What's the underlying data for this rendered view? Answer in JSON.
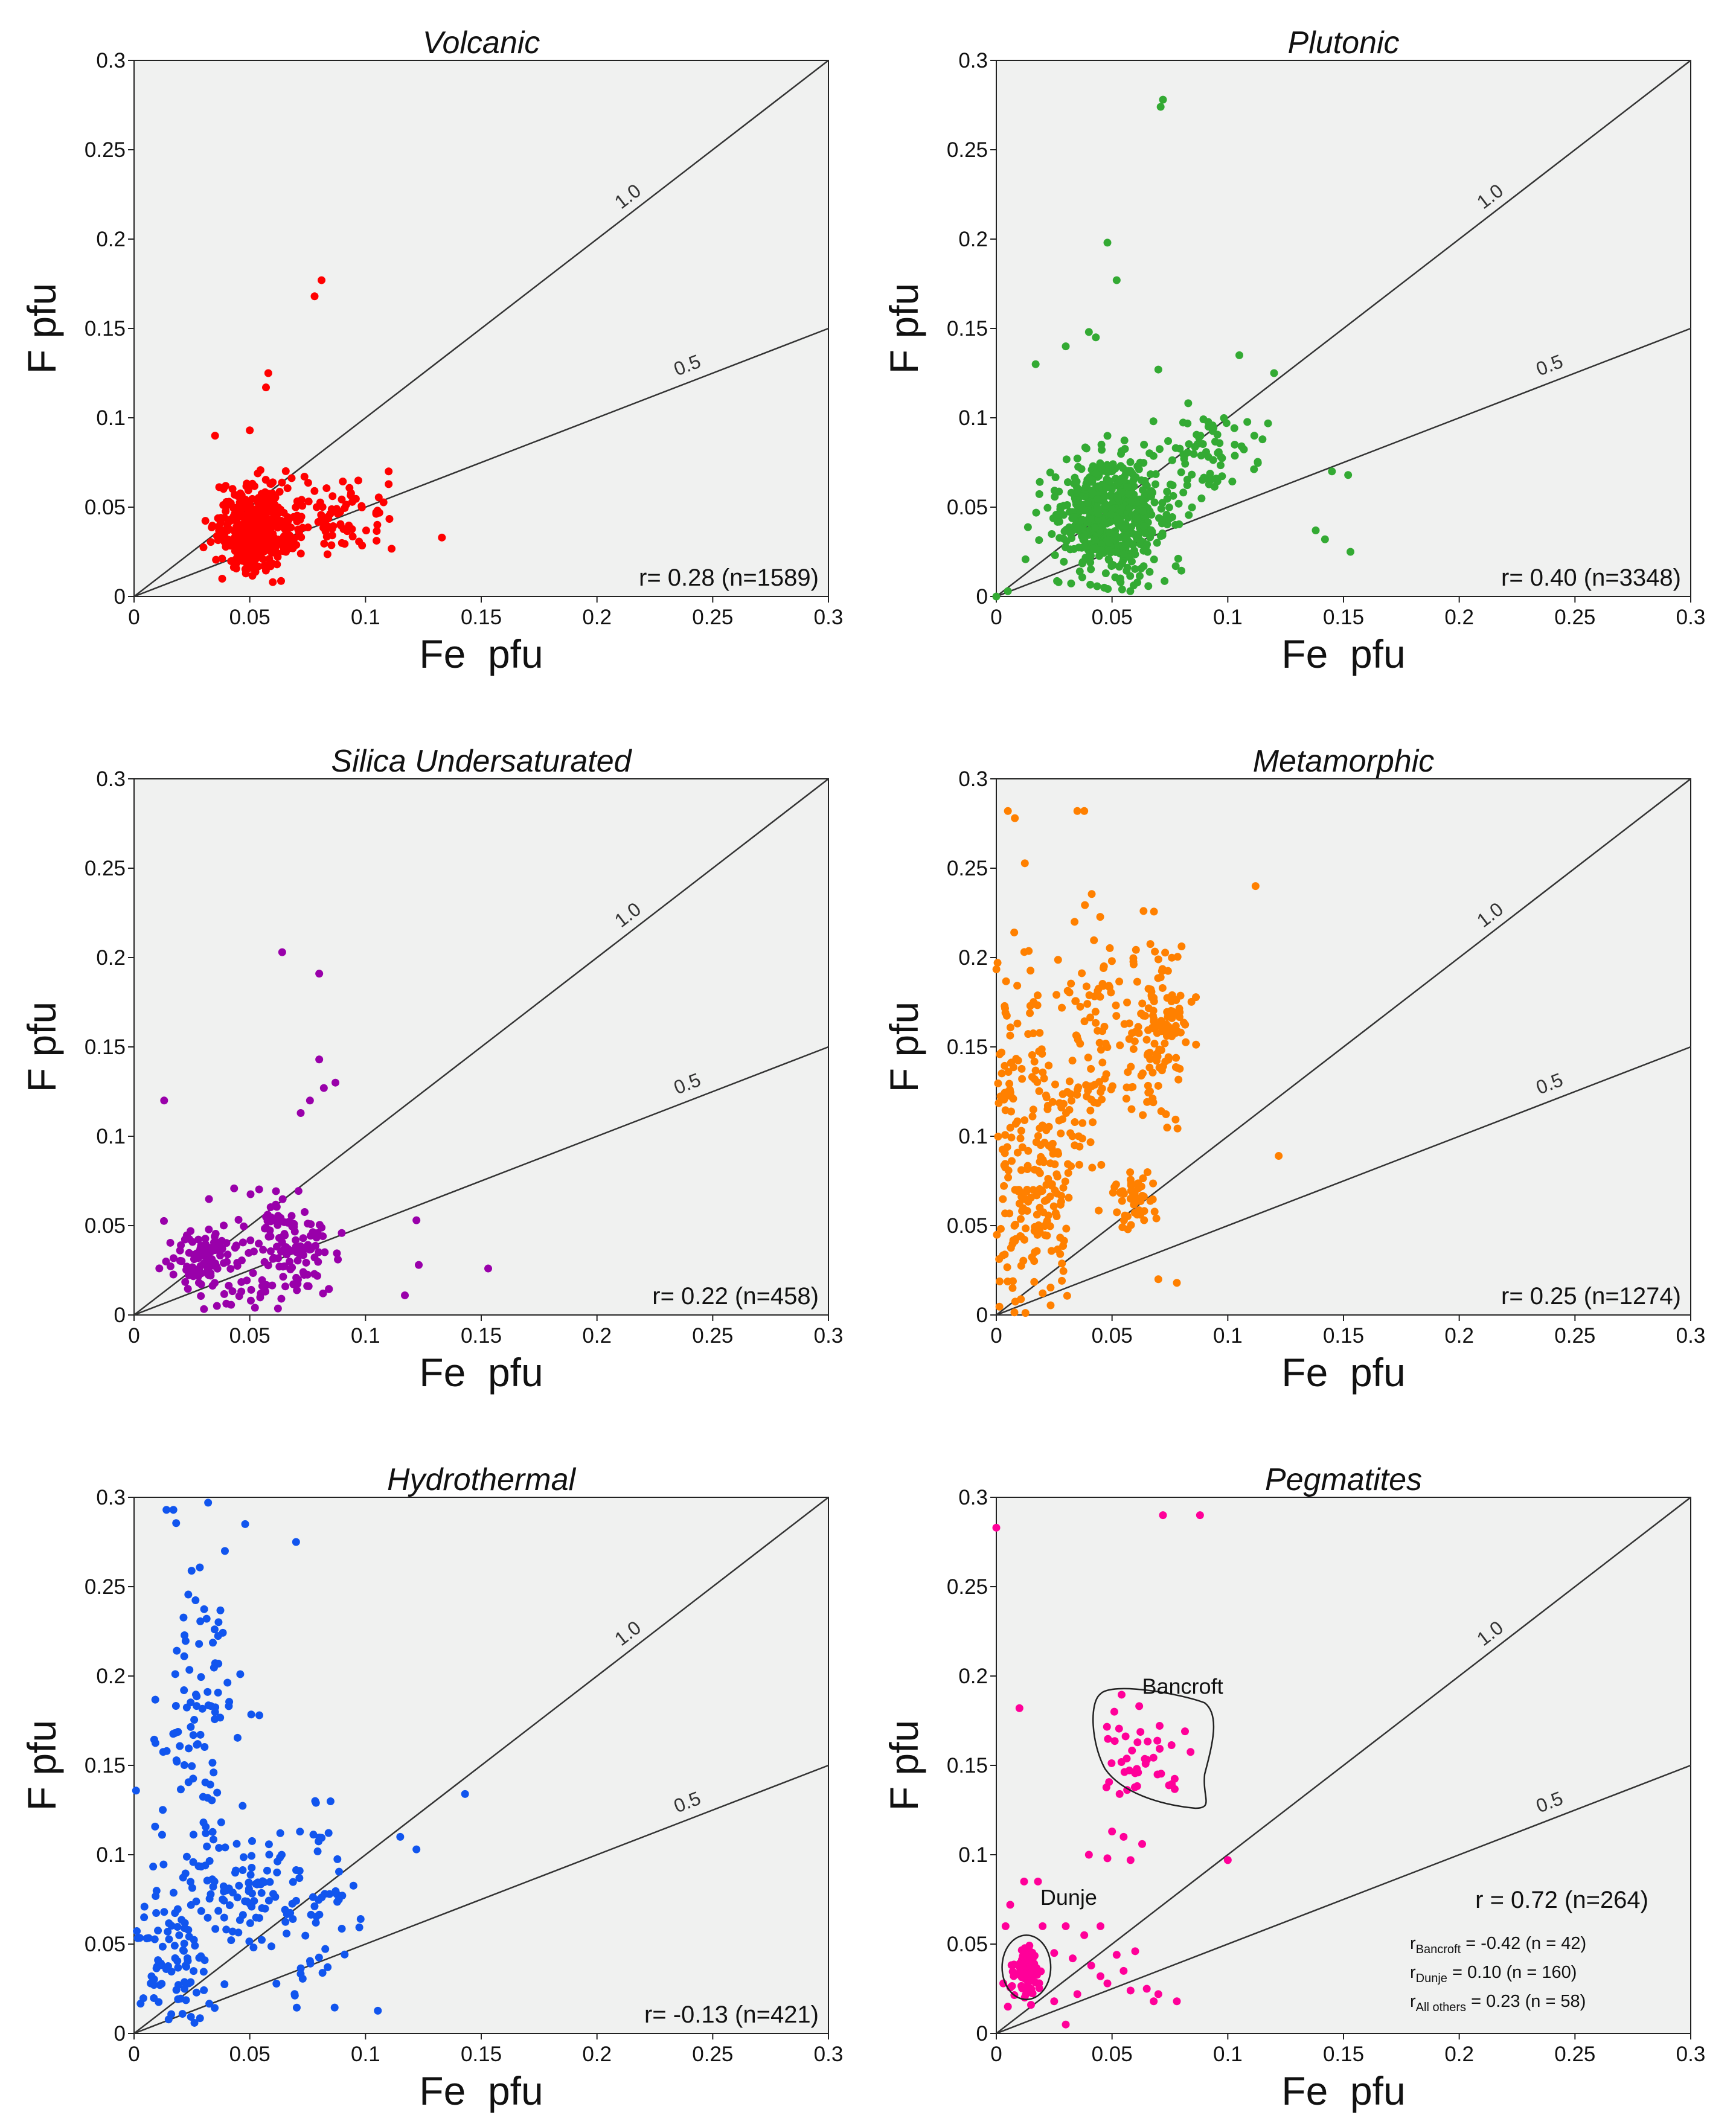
{
  "chart_data": [
    {
      "type": "scatter",
      "title": "Volcanic",
      "xlabel": "Fe pfu",
      "ylabel": "F pfu",
      "xlim": [
        0,
        0.3
      ],
      "ylim": [
        0,
        0.3
      ],
      "ticks": [
        "0",
        "0.05",
        "0.1",
        "0.15",
        "0.2",
        "0.25",
        "0.3"
      ],
      "ref_lines": [
        {
          "slope": 1.0,
          "label": "1.0"
        },
        {
          "slope": 0.5,
          "label": "0.5"
        }
      ],
      "stat": "r= 0.28 (n=1589)",
      "color": "#ff0000",
      "clusters": [
        {
          "cx": 0.052,
          "cy": 0.038,
          "sx": 0.008,
          "sy": 0.012,
          "n": 420,
          "xmin": 0.025,
          "xmax": 0.08,
          "ymin": 0.0,
          "ymax": 0.09
        },
        {
          "cx": 0.085,
          "cy": 0.045,
          "sx": 0.012,
          "sy": 0.01,
          "n": 90,
          "xmin": 0.06,
          "xmax": 0.112,
          "ymin": 0.02,
          "ymax": 0.072
        }
      ],
      "outliers": [
        [
          0.081,
          0.177
        ],
        [
          0.078,
          0.168
        ],
        [
          0.058,
          0.125
        ],
        [
          0.057,
          0.117
        ],
        [
          0.133,
          0.033
        ],
        [
          0.11,
          0.07
        ],
        [
          0.05,
          0.093
        ],
        [
          0.035,
          0.09
        ]
      ],
      "annotations": [],
      "sub_stats": []
    },
    {
      "type": "scatter",
      "title": "Plutonic",
      "xlabel": "Fe pfu",
      "ylabel": "F pfu",
      "xlim": [
        0,
        0.3
      ],
      "ylim": [
        0,
        0.3
      ],
      "ticks": [
        "0",
        "0.05",
        "0.1",
        "0.15",
        "0.2",
        "0.25",
        "0.3"
      ],
      "ref_lines": [
        {
          "slope": 1.0,
          "label": "1.0"
        },
        {
          "slope": 0.5,
          "label": "0.5"
        }
      ],
      "stat": "r= 0.40 (n=3348)",
      "color": "#33aa33",
      "clusters": [
        {
          "cx": 0.05,
          "cy": 0.045,
          "sx": 0.012,
          "sy": 0.017,
          "n": 600,
          "xmin": 0.01,
          "xmax": 0.095,
          "ymin": 0.0,
          "ymax": 0.1
        },
        {
          "cx": 0.09,
          "cy": 0.08,
          "sx": 0.01,
          "sy": 0.012,
          "n": 70,
          "xmin": 0.065,
          "xmax": 0.12,
          "ymin": 0.055,
          "ymax": 0.13
        }
      ],
      "outliers": [
        [
          0.072,
          0.278
        ],
        [
          0.071,
          0.274
        ],
        [
          0.048,
          0.198
        ],
        [
          0.052,
          0.177
        ],
        [
          0.04,
          0.148
        ],
        [
          0.043,
          0.145
        ],
        [
          0.017,
          0.13
        ],
        [
          0.03,
          0.14
        ],
        [
          0.07,
          0.127
        ],
        [
          0.105,
          0.135
        ],
        [
          0.145,
          0.07
        ],
        [
          0.152,
          0.068
        ],
        [
          0.153,
          0.025
        ],
        [
          0.138,
          0.037
        ],
        [
          0.142,
          0.032
        ],
        [
          0.12,
          0.125
        ],
        [
          0.0,
          0.0
        ],
        [
          0.005,
          0.003
        ]
      ],
      "annotations": [],
      "sub_stats": []
    },
    {
      "type": "scatter",
      "title": "Silica Undersaturated",
      "xlabel": "Fe pfu",
      "ylabel": "F pfu",
      "xlim": [
        0,
        0.3
      ],
      "ylim": [
        0,
        0.3
      ],
      "ticks": [
        "0",
        "0.05",
        "0.1",
        "0.15",
        "0.2",
        "0.25",
        "0.3"
      ],
      "ref_lines": [
        {
          "slope": 1.0,
          "label": "1.0"
        },
        {
          "slope": 0.5,
          "label": "0.5"
        }
      ],
      "stat": "r= 0.22 (n=458)",
      "color": "#9900aa",
      "clusters": [
        {
          "cx": 0.028,
          "cy": 0.032,
          "sx": 0.006,
          "sy": 0.008,
          "n": 90,
          "xmin": 0.01,
          "xmax": 0.045,
          "ymin": 0.005,
          "ymax": 0.06
        },
        {
          "cx": 0.07,
          "cy": 0.04,
          "sx": 0.01,
          "sy": 0.014,
          "n": 100,
          "xmin": 0.045,
          "xmax": 0.09,
          "ymin": 0.005,
          "ymax": 0.08
        },
        {
          "cx": 0.05,
          "cy": 0.03,
          "sx": 0.015,
          "sy": 0.02,
          "n": 60,
          "xmin": 0.01,
          "xmax": 0.09,
          "ymin": 0.0,
          "ymax": 0.08
        }
      ],
      "outliers": [
        [
          0.064,
          0.203
        ],
        [
          0.08,
          0.191
        ],
        [
          0.08,
          0.143
        ],
        [
          0.087,
          0.13
        ],
        [
          0.082,
          0.127
        ],
        [
          0.076,
          0.12
        ],
        [
          0.072,
          0.113
        ],
        [
          0.013,
          0.12
        ],
        [
          0.122,
          0.053
        ],
        [
          0.123,
          0.028
        ],
        [
          0.153,
          0.026
        ],
        [
          0.117,
          0.011
        ]
      ],
      "annotations": [],
      "sub_stats": []
    },
    {
      "type": "scatter",
      "title": "Metamorphic",
      "xlabel": "Fe pfu",
      "ylabel": "F pfu",
      "xlim": [
        0,
        0.3
      ],
      "ylim": [
        0,
        0.3
      ],
      "ticks": [
        "0",
        "0.05",
        "0.1",
        "0.15",
        "0.2",
        "0.25",
        "0.3"
      ],
      "ref_lines": [
        {
          "slope": 1.0,
          "label": "1.0"
        },
        {
          "slope": 0.5,
          "label": "0.5"
        }
      ],
      "stat": "r= 0.25 (n=1274)",
      "color": "#ff8000",
      "clusters": [
        {
          "cx": 0.01,
          "cy": 0.1,
          "sx": 0.007,
          "sy": 0.06,
          "n": 150,
          "xmin": 0.0,
          "xmax": 0.03,
          "ymin": 0.0,
          "ymax": 0.28
        },
        {
          "cx": 0.025,
          "cy": 0.08,
          "sx": 0.006,
          "sy": 0.04,
          "n": 100,
          "xmin": 0.01,
          "xmax": 0.04,
          "ymin": 0.0,
          "ymax": 0.16
        },
        {
          "cx": 0.04,
          "cy": 0.15,
          "sx": 0.006,
          "sy": 0.04,
          "n": 80,
          "xmin": 0.025,
          "xmax": 0.055,
          "ymin": 0.05,
          "ymax": 0.24
        },
        {
          "cx": 0.06,
          "cy": 0.065,
          "sx": 0.005,
          "sy": 0.01,
          "n": 50,
          "xmin": 0.045,
          "xmax": 0.075,
          "ymin": 0.045,
          "ymax": 0.09
        },
        {
          "cx": 0.07,
          "cy": 0.16,
          "sx": 0.008,
          "sy": 0.025,
          "n": 140,
          "xmin": 0.05,
          "xmax": 0.09,
          "ymin": 0.1,
          "ymax": 0.23
        }
      ],
      "outliers": [
        [
          0.038,
          0.282
        ],
        [
          0.035,
          0.282
        ],
        [
          0.005,
          0.282
        ],
        [
          0.008,
          0.278
        ],
        [
          0.112,
          0.24
        ],
        [
          0.122,
          0.089
        ],
        [
          0.078,
          0.018
        ],
        [
          0.07,
          0.02
        ]
      ],
      "annotations": [],
      "sub_stats": []
    },
    {
      "type": "scatter",
      "title": "Hydrothermal",
      "xlabel": "Fe pfu",
      "ylabel": "F pfu",
      "xlim": [
        0,
        0.3
      ],
      "ylim": [
        0,
        0.3
      ],
      "ticks": [
        "0",
        "0.05",
        "0.1",
        "0.15",
        "0.2",
        "0.25",
        "0.3"
      ],
      "ref_lines": [
        {
          "slope": 1.0,
          "label": "1.0"
        },
        {
          "slope": 0.5,
          "label": "0.5"
        }
      ],
      "stat": "r= -0.13 (n=421)",
      "color": "#1155ee",
      "clusters": [
        {
          "cx": 0.05,
          "cy": 0.08,
          "sx": 0.01,
          "sy": 0.014,
          "n": 70,
          "xmin": 0.03,
          "xmax": 0.075,
          "ymin": 0.05,
          "ymax": 0.11
        },
        {
          "cx": 0.028,
          "cy": 0.16,
          "sx": 0.01,
          "sy": 0.05,
          "n": 110,
          "xmin": 0.0,
          "xmax": 0.06,
          "ymin": 0.05,
          "ymax": 0.295
        },
        {
          "cx": 0.015,
          "cy": 0.04,
          "sx": 0.01,
          "sy": 0.025,
          "n": 90,
          "xmin": 0.0,
          "xmax": 0.05,
          "ymin": 0.0,
          "ymax": 0.1
        },
        {
          "cx": 0.08,
          "cy": 0.07,
          "sx": 0.012,
          "sy": 0.035,
          "n": 60,
          "xmin": 0.05,
          "xmax": 0.11,
          "ymin": 0.01,
          "ymax": 0.16
        }
      ],
      "outliers": [
        [
          0.143,
          0.134
        ],
        [
          0.115,
          0.11
        ],
        [
          0.122,
          0.103
        ],
        [
          0.07,
          0.275
        ],
        [
          0.048,
          0.285
        ],
        [
          0.032,
          0.297
        ],
        [
          0.017,
          0.293
        ],
        [
          0.014,
          0.293
        ]
      ],
      "annotations": [],
      "sub_stats": []
    },
    {
      "type": "scatter",
      "title": "Pegmatites",
      "xlabel": "Fe pfu",
      "ylabel": "F pfu",
      "xlim": [
        0,
        0.3
      ],
      "ylim": [
        0,
        0.3
      ],
      "ticks": [
        "0",
        "0.05",
        "0.1",
        "0.15",
        "0.2",
        "0.25",
        "0.3"
      ],
      "ref_lines": [
        {
          "slope": 1.0,
          "label": "1.0"
        },
        {
          "slope": 0.5,
          "label": "0.5"
        }
      ],
      "stat": "r = 0.72 (n=264)",
      "color": "#ff0099",
      "clusters": [
        {
          "cx": 0.013,
          "cy": 0.035,
          "sx": 0.003,
          "sy": 0.007,
          "n": 80,
          "xmin": 0.006,
          "xmax": 0.02,
          "ymin": 0.02,
          "ymax": 0.05
        },
        {
          "cx": 0.065,
          "cy": 0.155,
          "sx": 0.012,
          "sy": 0.013,
          "n": 42,
          "xmin": 0.045,
          "xmax": 0.09,
          "ymin": 0.13,
          "ymax": 0.19
        }
      ],
      "outliers": [
        [
          0.0,
          0.283
        ],
        [
          0.072,
          0.29
        ],
        [
          0.088,
          0.29
        ],
        [
          0.01,
          0.182
        ],
        [
          0.1,
          0.097
        ],
        [
          0.05,
          0.113
        ],
        [
          0.055,
          0.11
        ],
        [
          0.063,
          0.106
        ],
        [
          0.04,
          0.1
        ],
        [
          0.048,
          0.098
        ],
        [
          0.058,
          0.097
        ],
        [
          0.03,
          0.06
        ],
        [
          0.045,
          0.06
        ],
        [
          0.038,
          0.055
        ],
        [
          0.033,
          0.042
        ],
        [
          0.041,
          0.038
        ],
        [
          0.052,
          0.044
        ],
        [
          0.06,
          0.046
        ],
        [
          0.045,
          0.032
        ],
        [
          0.055,
          0.035
        ],
        [
          0.065,
          0.025
        ],
        [
          0.07,
          0.022
        ],
        [
          0.078,
          0.018
        ],
        [
          0.068,
          0.018
        ],
        [
          0.035,
          0.022
        ],
        [
          0.025,
          0.018
        ],
        [
          0.015,
          0.016
        ],
        [
          0.005,
          0.015
        ],
        [
          0.003,
          0.028
        ],
        [
          0.004,
          0.06
        ],
        [
          0.006,
          0.072
        ],
        [
          0.018,
          0.085
        ],
        [
          0.012,
          0.085
        ],
        [
          0.03,
          0.005
        ],
        [
          0.048,
          0.028
        ],
        [
          0.058,
          0.024
        ],
        [
          0.02,
          0.06
        ],
        [
          0.025,
          0.045
        ]
      ],
      "annotations": [
        {
          "text": "Bancroft",
          "x": 0.063,
          "y": 0.19
        },
        {
          "text": "Dunje",
          "x": 0.019,
          "y": 0.072
        }
      ],
      "sub_stats": [
        {
          "r": "r",
          "sub": "Bancroft",
          "rest": " = -0.42 (n = 42)"
        },
        {
          "r": "r",
          "sub": "Dunje",
          "rest": " = 0.10 (n = 160)"
        },
        {
          "r": "r",
          "sub": "All others",
          "rest": " = 0.23 (n = 58)"
        }
      ]
    }
  ]
}
